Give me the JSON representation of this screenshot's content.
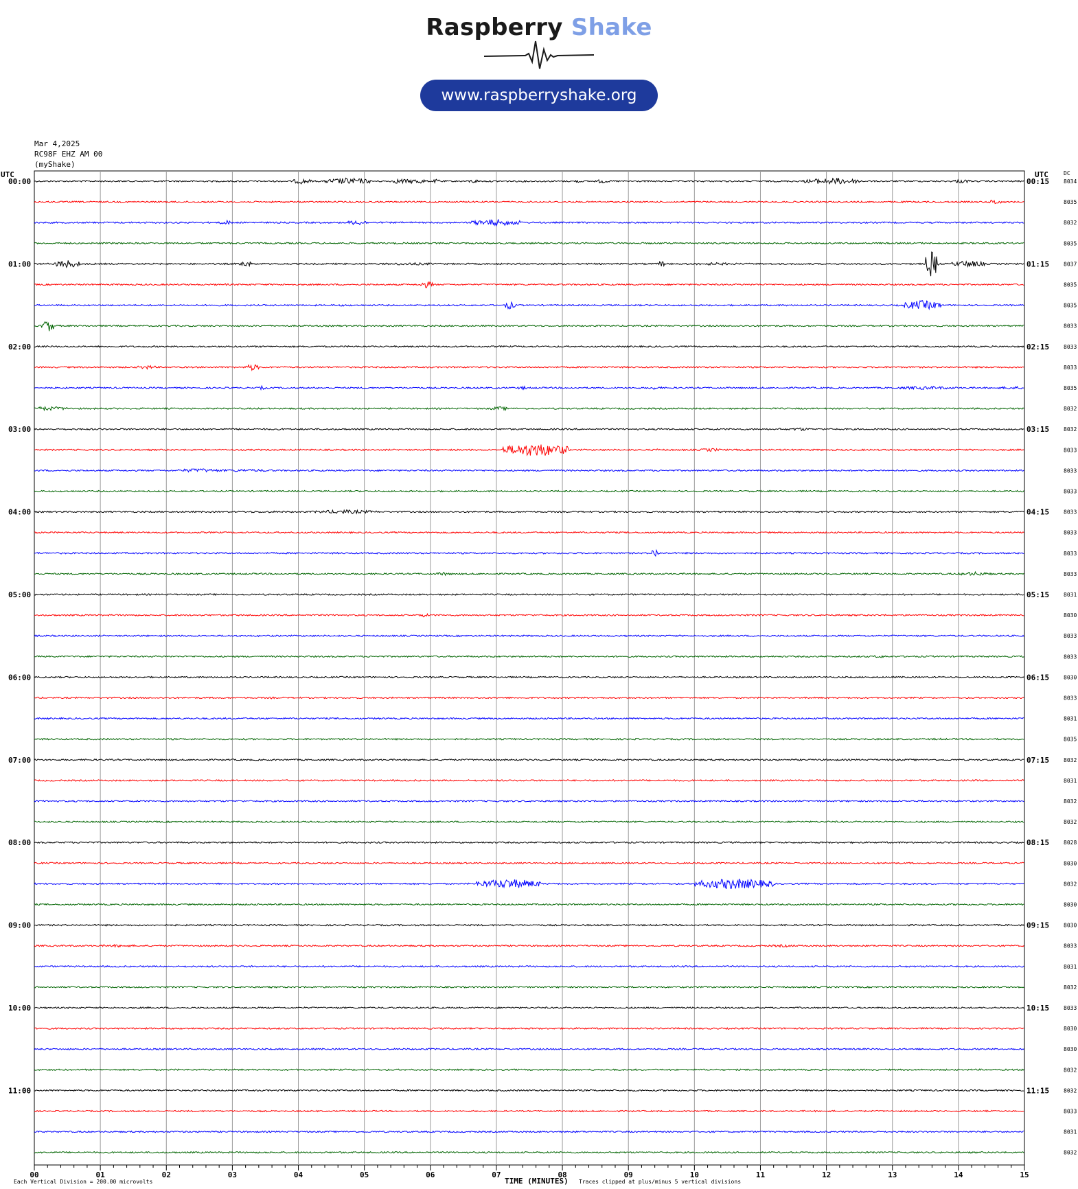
{
  "logo": {
    "brand_part1": "Raspberry",
    "brand_part2": "Shake",
    "url": "www.raspberryshake.org",
    "colors": {
      "dark": "#1a1a1a",
      "accent": "#7e9fe6",
      "pill": "#1e3a9c"
    }
  },
  "header": {
    "date": "Mar 4,2025",
    "station": "RC98F EHZ AM 00",
    "source": "(myShake)"
  },
  "labels": {
    "utc_left": "UTC",
    "utc_right": "UTC",
    "dc": "DC",
    "xlabel": "TIME (MINUTES)",
    "footer_left": "Each Vertical Division =  200.00 microvolts",
    "footer_right": "Traces clipped at plus/minus 5 vertical divisions"
  },
  "chart_data": {
    "type": "line",
    "title": "",
    "xlabel": "TIME (MINUTES)",
    "xlim": [
      0,
      15
    ],
    "x_ticks": [
      "00",
      "01",
      "02",
      "03",
      "04",
      "05",
      "06",
      "07",
      "08",
      "09",
      "10",
      "11",
      "12",
      "13",
      "14",
      "15"
    ],
    "trace_colors": [
      "#000000",
      "#ff0000",
      "#0000ff",
      "#006400"
    ],
    "left_hour_labels": [
      "00:00",
      "01:00",
      "02:00",
      "03:00",
      "04:00",
      "05:00",
      "06:00",
      "07:00",
      "08:00",
      "09:00",
      "10:00",
      "11:00"
    ],
    "right_hour_labels": [
      "00:15",
      "01:15",
      "02:15",
      "03:15",
      "04:15",
      "05:15",
      "06:15",
      "07:15",
      "08:15",
      "09:15",
      "10:15",
      "11:15"
    ],
    "dc_values": [
      "8034",
      "8035",
      "8032",
      "8035",
      "8037",
      "8035",
      "8035",
      "8033",
      "8033",
      "8033",
      "8035",
      "8032",
      "8032",
      "8033",
      "8033",
      "8033",
      "8033",
      "8033",
      "8033",
      "8033",
      "8031",
      "8030",
      "8033",
      "8033",
      "8030",
      "8033",
      "8031",
      "8035",
      "8032",
      "8031",
      "8032",
      "8032",
      "8028",
      "8030",
      "8032",
      "8030",
      "8030",
      "8033",
      "8031",
      "8032",
      "8033",
      "8030",
      "8030",
      "8032",
      "8032",
      "8033",
      "8031",
      "8032"
    ],
    "events": [
      [
        [
          4.05,
          0.15,
          4
        ],
        [
          4.75,
          0.35,
          5
        ],
        [
          5.55,
          0.15,
          4
        ],
        [
          5.8,
          0.15,
          4
        ],
        [
          6.1,
          0.08,
          3
        ],
        [
          6.65,
          0.08,
          3
        ],
        [
          8.25,
          0.05,
          2.5
        ],
        [
          8.6,
          0.1,
          3
        ],
        [
          11.9,
          0.25,
          4
        ],
        [
          12.15,
          0.4,
          5
        ],
        [
          14.05,
          0.15,
          3
        ]
      ],
      [
        [
          4.4,
          0.05,
          1
        ],
        [
          14.55,
          0.1,
          4
        ]
      ],
      [
        [
          2.9,
          0.1,
          3.5
        ],
        [
          4.9,
          0.15,
          4
        ],
        [
          6.1,
          0.05,
          1
        ],
        [
          7.0,
          0.4,
          5
        ]
      ],
      [
        [
          3.8,
          0.1,
          1
        ]
      ],
      [
        [
          0.5,
          0.2,
          6
        ],
        [
          3.2,
          0.1,
          5
        ],
        [
          5.7,
          0.5,
          2
        ],
        [
          9.5,
          0.05,
          5
        ],
        [
          10.3,
          0.5,
          2
        ],
        [
          13.6,
          0.1,
          20
        ],
        [
          14.15,
          0.25,
          5
        ]
      ],
      [
        [
          1.8,
          0.1,
          1
        ],
        [
          2.9,
          0.1,
          1.5
        ],
        [
          5.95,
          0.1,
          5
        ]
      ],
      [
        [
          4.7,
          0.3,
          1.5
        ],
        [
          7.2,
          0.08,
          6
        ],
        [
          13.45,
          0.3,
          7
        ]
      ],
      [
        [
          0.2,
          0.1,
          9
        ],
        [
          10.9,
          0.15,
          1
        ]
      ],
      [
        [
          7.3,
          0.1,
          1
        ]
      ],
      [
        [
          1.7,
          0.15,
          3
        ],
        [
          3.3,
          0.1,
          5
        ]
      ],
      [
        [
          3.45,
          0.05,
          3
        ],
        [
          7.4,
          0.1,
          2.5
        ],
        [
          9.4,
          0.12,
          2.5
        ],
        [
          13.5,
          0.5,
          2.5
        ],
        [
          14.8,
          0.2,
          2.5
        ]
      ],
      [
        [
          0.2,
          0.35,
          3
        ],
        [
          7.05,
          0.15,
          3
        ],
        [
          6.1,
          0.1,
          1
        ]
      ],
      [
        [
          9.5,
          0.05,
          2
        ],
        [
          11.3,
          0.1,
          1.5
        ],
        [
          11.6,
          0.15,
          2.5
        ]
      ],
      [
        [
          7.6,
          0.5,
          10
        ],
        [
          9.45,
          0.05,
          2
        ],
        [
          10.25,
          0.18,
          2.5
        ],
        [
          6.6,
          0.3,
          1.2
        ]
      ],
      [
        [
          2.5,
          0.35,
          3
        ],
        [
          3.2,
          0.6,
          2
        ]
      ],
      [
        [
          2.3,
          0.05,
          1.5
        ],
        [
          1.2,
          0.3,
          1
        ],
        [
          8.5,
          0.2,
          1
        ]
      ],
      [
        [
          4.7,
          0.5,
          3
        ],
        [
          3.5,
          0.8,
          1.5
        ],
        [
          8.2,
          0.8,
          1
        ]
      ],
      [],
      [
        [
          9.4,
          0.05,
          8
        ],
        [
          10.5,
          0.5,
          1
        ]
      ],
      [
        [
          6.2,
          0.1,
          3
        ],
        [
          14.25,
          0.25,
          3
        ],
        [
          12.8,
          0.2,
          1
        ]
      ],
      [],
      [
        [
          5.9,
          0.08,
          3
        ]
      ],
      [],
      [
        [
          1.3,
          0.2,
          1.2
        ],
        [
          2.5,
          0.2,
          1
        ],
        [
          5.2,
          0.2,
          1
        ],
        [
          12.8,
          0.15,
          2
        ]
      ],
      [
        [
          1.5,
          0.3,
          0.8
        ]
      ],
      [
        [
          3.6,
          0.1,
          1.5
        ],
        [
          8.6,
          0.15,
          1.2
        ]
      ],
      [
        [
          8.8,
          0.05,
          0.8
        ]
      ],
      [
        [
          13.7,
          0.15,
          1.5
        ]
      ],
      [],
      [
        [
          0.7,
          0.1,
          1
        ],
        [
          3.9,
          0.2,
          1
        ]
      ],
      [
        [
          0.8,
          0.03,
          1.5
        ]
      ],
      [],
      [
        [
          0.85,
          0.05,
          1.8
        ],
        [
          6.0,
          0.05,
          0.8
        ]
      ],
      [
        [
          4.45,
          0.02,
          2.5
        ]
      ],
      [
        [
          7.2,
          0.5,
          7
        ],
        [
          10.6,
          0.6,
          8
        ]
      ],
      [],
      [],
      [
        [
          1.3,
          0.35,
          2
        ],
        [
          11.35,
          0.25,
          2
        ]
      ],
      [
        [
          3.3,
          0.04,
          1.5
        ]
      ],
      [],
      [],
      [],
      [],
      [],
      [],
      [],
      [],
      [
        [
          6.9,
          0.2,
          1.2
        ]
      ]
    ]
  }
}
